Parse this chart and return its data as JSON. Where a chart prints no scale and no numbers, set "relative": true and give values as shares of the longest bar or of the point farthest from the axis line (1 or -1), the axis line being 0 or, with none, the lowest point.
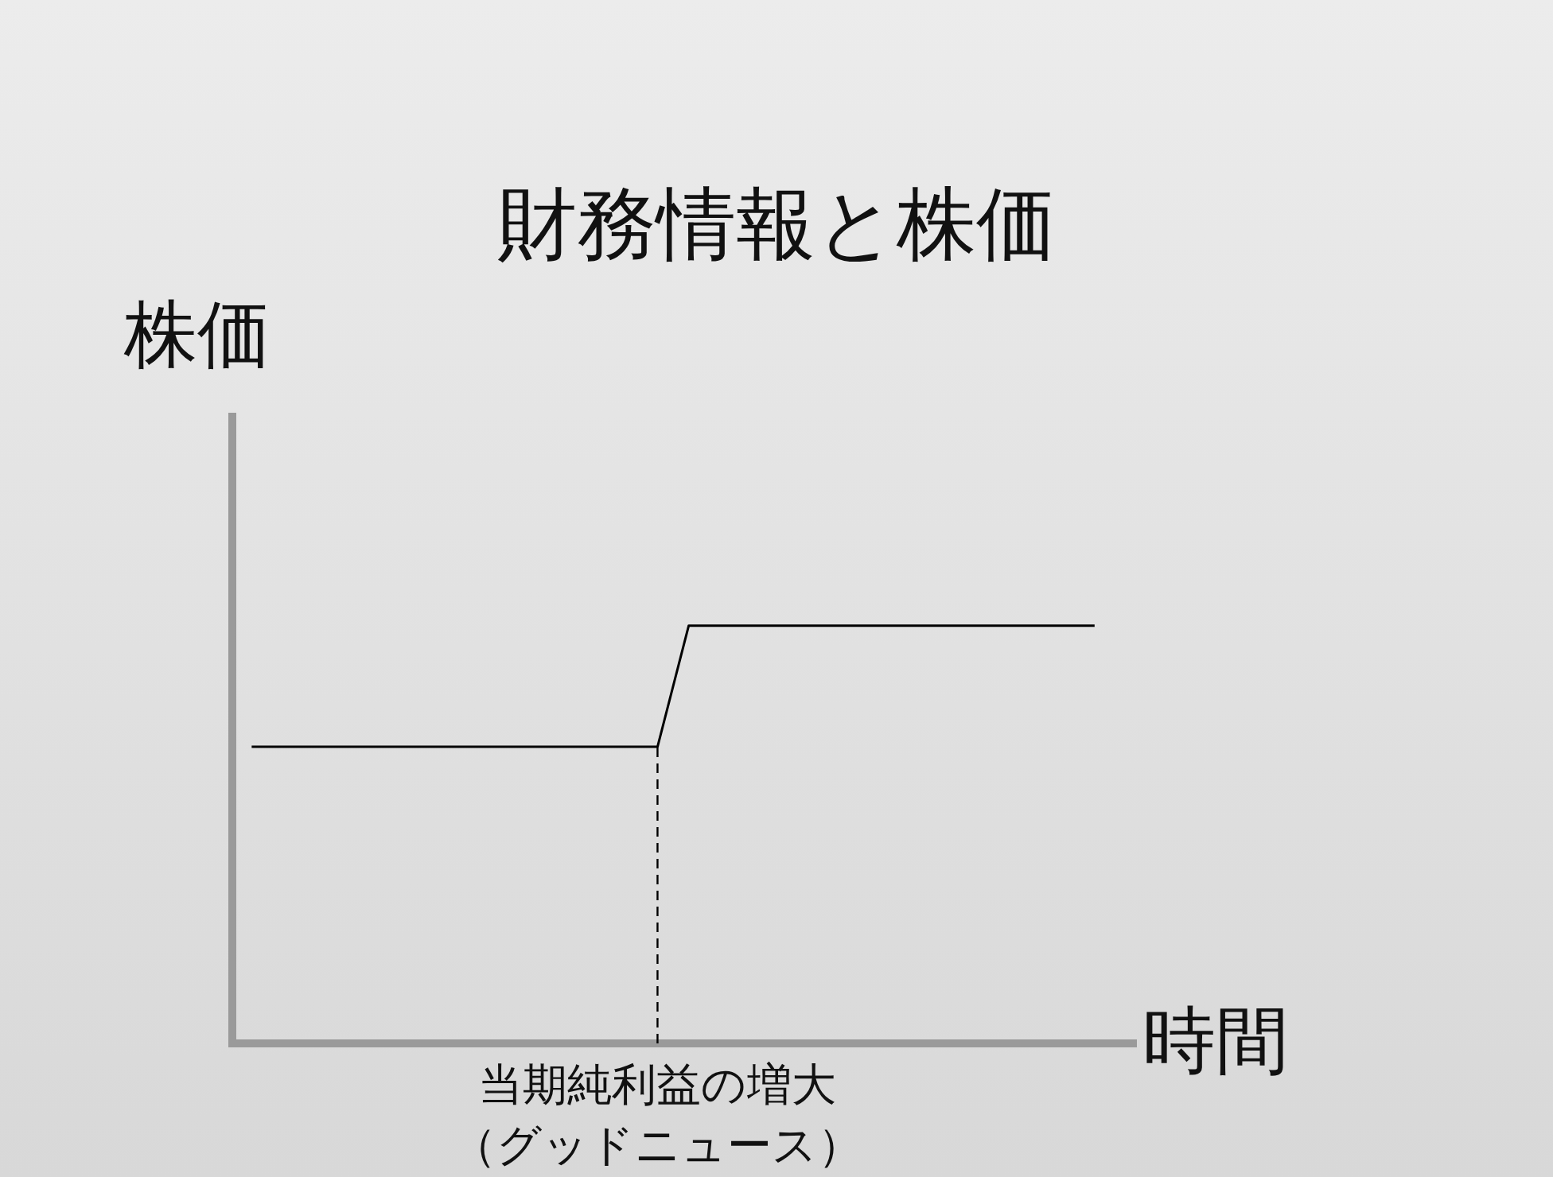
{
  "chart_data": {
    "type": "line",
    "title": "財務情報と株価",
    "xlabel": "時間",
    "ylabel": "株価",
    "relative": true,
    "categories": [
      null,
      null,
      null,
      null,
      null,
      null,
      null,
      null,
      null,
      null,
      null,
      null,
      null,
      null,
      null,
      null,
      null,
      null,
      null,
      null,
      null,
      null,
      null,
      null,
      null,
      null,
      null,
      null
    ],
    "series": [
      {
        "color": "#000000",
        "values": [
          0.71,
          0.71,
          0.71,
          0.71,
          0.71,
          0.71,
          0.71,
          0.71,
          0.71,
          0.71,
          0.71,
          0.71,
          0.71,
          0.71,
          1,
          1,
          1,
          1,
          1,
          1,
          1,
          1,
          1,
          1,
          1,
          1,
          1,
          1
        ]
      }
    ],
    "annotations": [
      "当期純利益の増大",
      "（グッドニュース）"
    ],
    "marker": "none",
    "line_style": "solid",
    "grid": false,
    "legend": false
  }
}
